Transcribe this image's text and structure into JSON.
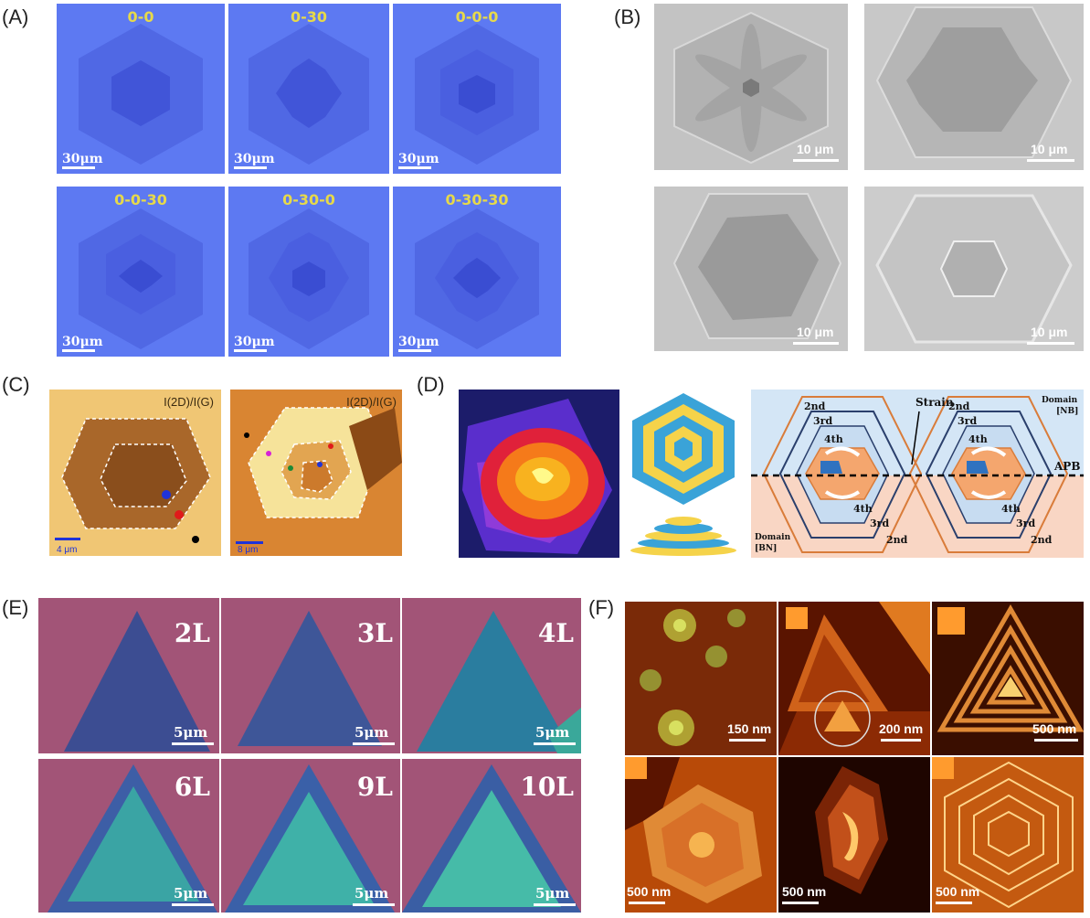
{
  "panels": {
    "A": {
      "label": "(A)",
      "tiles": [
        {
          "title": "0-0",
          "scale": "30μm"
        },
        {
          "title": "0-30",
          "scale": "30μm"
        },
        {
          "title": "0-0-0",
          "scale": "30μm"
        },
        {
          "title": "0-0-30",
          "scale": "30μm"
        },
        {
          "title": "0-30-0",
          "scale": "30μm"
        },
        {
          "title": "0-30-30",
          "scale": "30μm"
        }
      ],
      "color": "#5b76f0"
    },
    "B": {
      "label": "(B)",
      "tiles": [
        {
          "scale": "10 μm"
        },
        {
          "scale": "10 μm"
        },
        {
          "scale": "10 μm"
        },
        {
          "scale": "10 μm"
        }
      ]
    },
    "C": {
      "label": "(C)",
      "tiles": [
        {
          "title": "I(2D)/I(G)",
          "scale": "4 μm"
        },
        {
          "title": "I(2D)/I(G)",
          "scale": "8 μm"
        }
      ]
    },
    "D": {
      "label": "(D)",
      "diagram": {
        "strain": "Strain",
        "apb": "APB",
        "domain_nb_1": "Domain",
        "domain_nb_2": "[NB]",
        "domain_bn_1": "Domain",
        "domain_bn_2": "[BN]",
        "l2a": "2nd",
        "l3a": "3rd",
        "l4a": "4th",
        "l2b": "2nd",
        "l3b": "3rd",
        "l4b": "4th",
        "l4c": "4th",
        "l3c": "3rd",
        "l2c": "2nd",
        "l4d": "4th",
        "l3d": "3rd",
        "l2d": "2nd"
      }
    },
    "E": {
      "label": "(E)",
      "tiles": [
        {
          "layer": "2L",
          "scale": "5μm"
        },
        {
          "layer": "3L",
          "scale": "5μm"
        },
        {
          "layer": "4L",
          "scale": "5μm"
        },
        {
          "layer": "6L",
          "scale": "5μm"
        },
        {
          "layer": "9L",
          "scale": "5μm"
        },
        {
          "layer": "10L",
          "scale": "5μm"
        }
      ]
    },
    "F": {
      "label": "(F)",
      "tiles": [
        {
          "scale": "150 nm"
        },
        {
          "scale": "200 nm"
        },
        {
          "scale": "500 nm"
        },
        {
          "scale": "500 nm"
        },
        {
          "scale": "500 nm"
        },
        {
          "scale": "500 nm"
        }
      ]
    }
  }
}
